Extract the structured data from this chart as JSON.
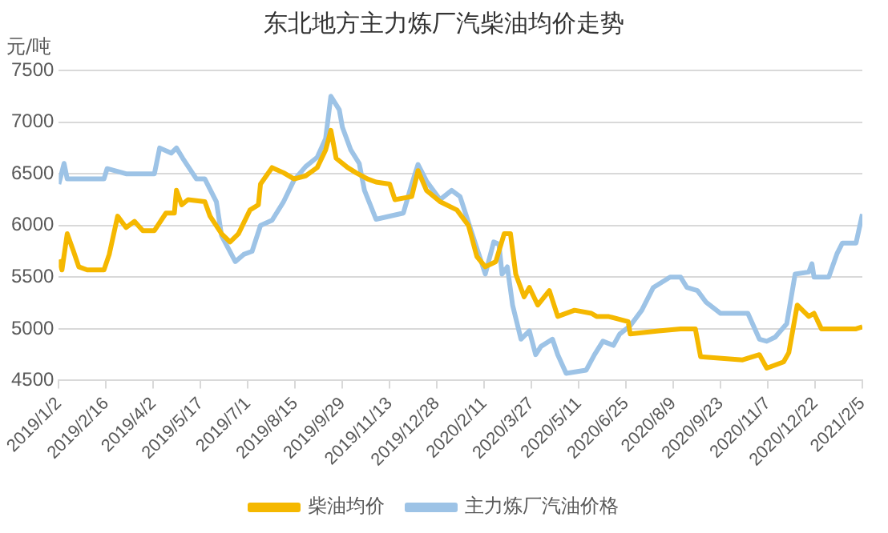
{
  "chart_data": {
    "type": "line",
    "title": "东北地方主力炼厂汽柴油均价走势",
    "ylabel": "元/吨",
    "xlim": [
      "2019-01-02",
      "2021-02-05"
    ],
    "xticks": [
      {
        "value": "2019-01-02",
        "label": "2019/1/2"
      },
      {
        "value": "2019-02-16",
        "label": "2019/2/16"
      },
      {
        "value": "2019-04-02",
        "label": "2019/4/2"
      },
      {
        "value": "2019-05-17",
        "label": "2019/5/17"
      },
      {
        "value": "2019-07-01",
        "label": "2019/7/1"
      },
      {
        "value": "2019-08-15",
        "label": "2019/8/15"
      },
      {
        "value": "2019-09-29",
        "label": "2019/9/29"
      },
      {
        "value": "2019-11-13",
        "label": "2019/11/13"
      },
      {
        "value": "2019-12-28",
        "label": "2019/12/28"
      },
      {
        "value": "2020-02-11",
        "label": "2020/2/11"
      },
      {
        "value": "2020-03-27",
        "label": "2020/3/27"
      },
      {
        "value": "2020-05-11",
        "label": "2020/5/11"
      },
      {
        "value": "2020-06-25",
        "label": "2020/6/25"
      },
      {
        "value": "2020-08-09",
        "label": "2020/8/9"
      },
      {
        "value": "2020-09-23",
        "label": "2020/9/23"
      },
      {
        "value": "2020-11-07",
        "label": "2020/11/7"
      },
      {
        "value": "2020-12-22",
        "label": "2020/12/22"
      },
      {
        "value": "2021-02-05",
        "label": "2021/2/5"
      }
    ],
    "ylim": [
      4500,
      7500
    ],
    "yticks": [
      4500,
      5000,
      5500,
      6000,
      6500,
      7000,
      7500
    ],
    "grid": "y",
    "legend": "bottom",
    "line_style": "solid",
    "marker": "none",
    "series": [
      {
        "name": "柴油均价",
        "color": "#f5b800",
        "x": [
          "2019-01-02",
          "2019-01-05",
          "2019-01-10",
          "2019-01-16",
          "2019-01-21",
          "2019-01-29",
          "2019-02-14",
          "2019-02-19",
          "2019-02-27",
          "2019-03-07",
          "2019-03-15",
          "2019-03-23",
          "2019-04-03",
          "2019-04-14",
          "2019-04-22",
          "2019-04-24",
          "2019-04-29",
          "2019-05-05",
          "2019-05-21",
          "2019-05-26",
          "2019-06-06",
          "2019-06-14",
          "2019-06-22",
          "2019-07-03",
          "2019-07-11",
          "2019-07-13",
          "2019-07-24",
          "2019-08-04",
          "2019-08-14",
          "2019-08-25",
          "2019-09-05",
          "2019-09-13",
          "2019-09-18",
          "2019-09-23",
          "2019-10-04",
          "2019-10-12",
          "2019-10-23",
          "2019-10-31",
          "2019-11-13",
          "2019-11-18",
          "2019-12-04",
          "2019-12-10",
          "2019-12-18",
          "2019-12-31",
          "2020-01-16",
          "2020-01-27",
          "2020-02-04",
          "2020-02-12",
          "2020-02-22",
          "2020-03-01",
          "2020-03-07",
          "2020-03-12",
          "2020-03-20",
          "2020-03-25",
          "2020-04-02",
          "2020-04-13",
          "2020-04-21",
          "2020-05-07",
          "2020-05-23",
          "2020-05-28",
          "2020-06-08",
          "2020-06-27",
          "2020-06-29",
          "2020-07-26",
          "2020-08-16",
          "2020-08-30",
          "2020-09-04",
          "2020-10-14",
          "2020-10-30",
          "2020-11-06",
          "2020-11-22",
          "2020-11-27",
          "2020-12-05",
          "2020-12-16",
          "2020-12-21",
          "2020-12-28",
          "2021-01-30",
          "2021-02-05"
        ],
        "values": [
          5670,
          5570,
          5920,
          5750,
          5600,
          5570,
          5570,
          5720,
          6090,
          5980,
          6040,
          5950,
          5950,
          6120,
          6120,
          6340,
          6200,
          6250,
          6230,
          6090,
          5920,
          5840,
          5920,
          6150,
          6200,
          6400,
          6560,
          6510,
          6450,
          6480,
          6560,
          6730,
          6920,
          6650,
          6560,
          6510,
          6450,
          6420,
          6400,
          6250,
          6280,
          6530,
          6340,
          6230,
          6150,
          6000,
          5700,
          5600,
          5650,
          5920,
          5920,
          5530,
          5310,
          5400,
          5230,
          5370,
          5120,
          5180,
          5150,
          5120,
          5120,
          5070,
          4950,
          4980,
          5000,
          5000,
          4730,
          4700,
          4750,
          4620,
          4680,
          4770,
          5230,
          5120,
          5150,
          5000,
          5000,
          5020
        ]
      },
      {
        "name": "主力炼厂汽油价格",
        "color": "#9dc3e6",
        "x": [
          "2019-01-02",
          "2019-01-07",
          "2019-01-10",
          "2019-01-24",
          "2019-02-14",
          "2019-02-17",
          "2019-03-07",
          "2019-04-03",
          "2019-04-08",
          "2019-04-19",
          "2019-04-24",
          "2019-04-30",
          "2019-05-13",
          "2019-05-21",
          "2019-06-01",
          "2019-06-06",
          "2019-06-19",
          "2019-06-27",
          "2019-07-05",
          "2019-07-13",
          "2019-07-24",
          "2019-08-04",
          "2019-08-14",
          "2019-08-25",
          "2019-09-05",
          "2019-09-13",
          "2019-09-18",
          "2019-09-26",
          "2019-09-29",
          "2019-10-07",
          "2019-10-15",
          "2019-10-20",
          "2019-10-31",
          "2019-11-26",
          "2019-12-04",
          "2019-12-10",
          "2019-12-18",
          "2019-12-31",
          "2020-01-11",
          "2020-01-19",
          "2020-01-27",
          "2020-02-04",
          "2020-02-12",
          "2020-02-20",
          "2020-02-25",
          "2020-02-28",
          "2020-03-04",
          "2020-03-09",
          "2020-03-17",
          "2020-03-25",
          "2020-03-31",
          "2020-04-05",
          "2020-04-16",
          "2020-04-21",
          "2020-04-29",
          "2020-05-18",
          "2020-05-26",
          "2020-06-03",
          "2020-06-13",
          "2020-06-19",
          "2020-06-29",
          "2020-07-10",
          "2020-07-21",
          "2020-08-06",
          "2020-08-16",
          "2020-08-22",
          "2020-09-01",
          "2020-09-09",
          "2020-09-23",
          "2020-10-19",
          "2020-10-30",
          "2020-11-06",
          "2020-11-14",
          "2020-11-25",
          "2020-12-03",
          "2020-12-16",
          "2020-12-19",
          "2020-12-21",
          "2021-01-04",
          "2021-01-12",
          "2021-01-17",
          "2021-01-30",
          "2021-02-05"
        ],
        "values": [
          6400,
          6600,
          6450,
          6450,
          6450,
          6550,
          6500,
          6500,
          6750,
          6700,
          6750,
          6650,
          6450,
          6450,
          6230,
          5900,
          5650,
          5720,
          5750,
          6000,
          6050,
          6230,
          6440,
          6570,
          6660,
          6840,
          7250,
          7120,
          6950,
          6730,
          6600,
          6340,
          6060,
          6120,
          6400,
          6590,
          6430,
          6250,
          6340,
          6280,
          6030,
          5780,
          5530,
          5840,
          5820,
          5530,
          5600,
          5230,
          4900,
          4980,
          4750,
          4830,
          4900,
          4750,
          4570,
          4600,
          4750,
          4880,
          4840,
          4950,
          5030,
          5180,
          5400,
          5500,
          5500,
          5400,
          5370,
          5260,
          5150,
          5150,
          4900,
          4880,
          4920,
          5050,
          5530,
          5550,
          5630,
          5500,
          5500,
          5730,
          5830,
          5830,
          6110
        ]
      }
    ]
  }
}
